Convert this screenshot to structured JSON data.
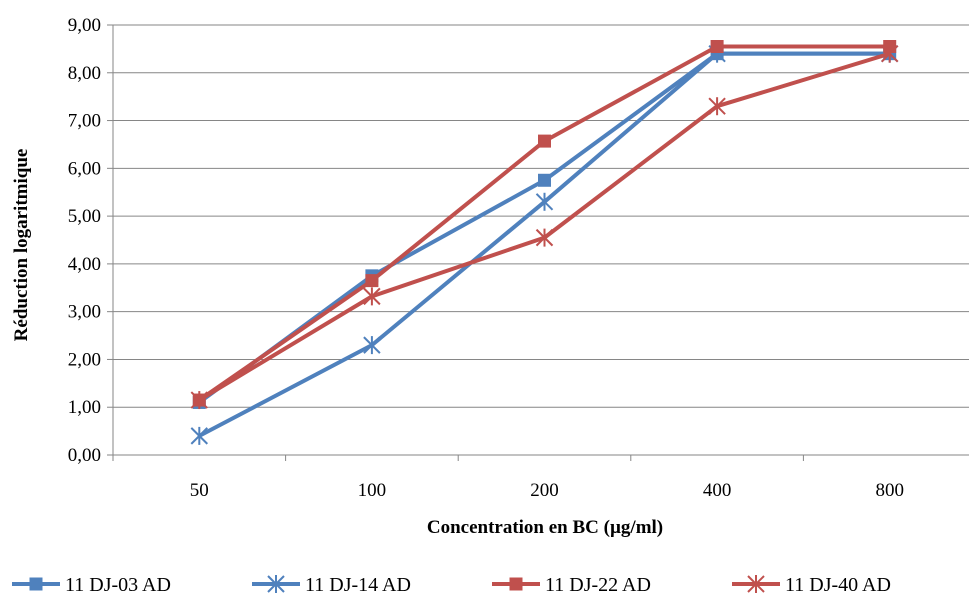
{
  "chart_data": {
    "type": "line",
    "categories": [
      "50",
      "100",
      "200",
      "400",
      "800"
    ],
    "xlabel": "Concentration en BC (µg/ml)",
    "ylabel": "Réduction logaritmique",
    "ylim": [
      0,
      9
    ],
    "y_ticks": [
      "0,00",
      "1,00",
      "2,00",
      "3,00",
      "4,00",
      "5,00",
      "6,00",
      "7,00",
      "8,00",
      "9,00"
    ],
    "grid": "horizontal",
    "legend_position": "bottom",
    "series": [
      {
        "name": "11 DJ-03 AD",
        "values": [
          1.1,
          3.75,
          5.75,
          8.4,
          8.4
        ],
        "color": "#4F81BD",
        "marker": "square"
      },
      {
        "name": "11 DJ-14 AD",
        "values": [
          0.4,
          2.3,
          5.3,
          8.4,
          8.4
        ],
        "color": "#4F81BD",
        "marker": "star"
      },
      {
        "name": "11 DJ-22 AD",
        "values": [
          1.15,
          3.65,
          6.57,
          8.55,
          8.55
        ],
        "color": "#C0504D",
        "marker": "square"
      },
      {
        "name": "11 DJ-40 AD",
        "values": [
          1.15,
          3.32,
          4.55,
          7.3,
          8.4
        ],
        "color": "#C0504D",
        "marker": "star"
      }
    ]
  }
}
